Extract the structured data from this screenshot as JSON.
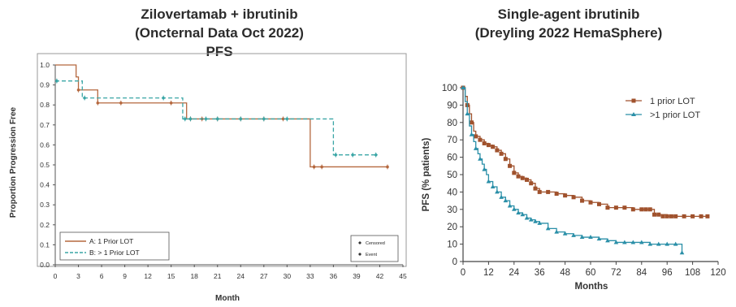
{
  "chart_data": [
    {
      "type": "line",
      "step": true,
      "title_lines": [
        "Zilovertamab + ibrutinib",
        "(Oncternal Data Oct 2022)",
        "PFS"
      ],
      "xlabel": "Month",
      "ylabel": "Proportion Progression Free",
      "xlim": [
        0,
        45
      ],
      "ylim": [
        0.0,
        1.0
      ],
      "xticks": [
        "0",
        "3",
        "6",
        "9",
        "12",
        "15",
        "18",
        "21",
        "24",
        "27",
        "30",
        "33",
        "36",
        "39",
        "42",
        "45"
      ],
      "yticks": [
        "0.0",
        "0.1",
        "0.2",
        "0.3",
        "0.4",
        "0.5",
        "0.6",
        "0.7",
        "0.8",
        "0.9",
        "1.0"
      ],
      "legend": {
        "position": "bottom-left",
        "entries": [
          "A: 1 Prior LOT",
          "B: > 1 Prior LOT"
        ]
      },
      "symbol_legend": {
        "position": "bottom-right",
        "entries": [
          "Censored",
          "Event"
        ]
      },
      "series": [
        {
          "name": "A: 1 Prior LOT",
          "color": "#b5683f",
          "dash": "solid",
          "steps": [
            [
              0,
              1.0
            ],
            [
              2.7,
              0.94
            ],
            [
              3,
              0.875
            ],
            [
              5.5,
              0.81
            ],
            [
              17,
              0.73
            ],
            [
              33,
              0.49
            ],
            [
              43,
              0.49
            ]
          ],
          "censored": [
            3,
            5.5,
            8.5,
            15,
            17.5,
            19,
            21,
            24,
            27,
            29.5,
            33.5,
            34.5,
            43
          ]
        },
        {
          "name": "B: > 1 Prior LOT",
          "color": "#3aa6a6",
          "dash": "dashed",
          "steps": [
            [
              0,
              0.92
            ],
            [
              3.5,
              0.835
            ],
            [
              16.5,
              0.73
            ],
            [
              36,
              0.55
            ],
            [
              41.5,
              0.55
            ]
          ],
          "censored": [
            0.2,
            3.8,
            14,
            16.8,
            17.5,
            19.5,
            21,
            24,
            27,
            30,
            36.3,
            38.5,
            41.5
          ]
        }
      ]
    },
    {
      "type": "line",
      "step": true,
      "title_lines": [
        "Single-agent ibrutinib",
        "(Dreyling 2022 HemaSphere)"
      ],
      "xlabel": "Months",
      "ylabel": "PFS (% patients)",
      "xlim": [
        0,
        120
      ],
      "ylim": [
        0,
        100
      ],
      "xticks": [
        "0",
        "12",
        "24",
        "36",
        "48",
        "60",
        "72",
        "84",
        "96",
        "108",
        "120"
      ],
      "yticks": [
        "0",
        "10",
        "20",
        "30",
        "40",
        "50",
        "60",
        "70",
        "80",
        "90",
        "100"
      ],
      "legend": {
        "position": "top-right",
        "entries": [
          "1 prior LOT",
          ">1 prior LOT"
        ]
      },
      "series": [
        {
          "name": "1 prior LOT",
          "color": "#a0522d",
          "marker": "square",
          "x": [
            0,
            1,
            2,
            3,
            4,
            5,
            6,
            8,
            10,
            12,
            14,
            16,
            18,
            20,
            22,
            24,
            26,
            28,
            30,
            32,
            34,
            36,
            40,
            44,
            48,
            52,
            56,
            60,
            64,
            68,
            72,
            76,
            80,
            84,
            88,
            90,
            96,
            100,
            104,
            108,
            112,
            115
          ],
          "y": [
            100,
            95,
            90,
            85,
            80,
            75,
            72,
            70,
            68,
            67,
            66,
            64,
            62,
            59,
            55,
            51,
            49,
            48,
            47,
            45,
            42,
            40,
            40,
            39,
            38,
            37,
            35,
            34,
            33,
            31,
            31,
            31,
            30,
            30,
            30,
            27,
            26,
            26,
            26,
            26,
            26,
            26
          ],
          "markers_x": [
            0,
            2,
            4,
            6,
            8,
            10,
            12,
            14,
            16,
            18,
            20,
            22,
            24,
            26,
            28,
            30,
            32,
            34,
            36,
            40,
            44,
            48,
            52,
            56,
            60,
            64,
            68,
            72,
            76,
            80,
            84,
            86,
            88,
            90,
            92,
            94,
            96,
            98,
            100,
            104,
            108,
            112,
            115
          ],
          "markers_y": [
            100,
            90,
            80,
            72,
            70,
            68,
            67,
            66,
            64,
            62,
            59,
            55,
            51,
            49,
            48,
            47,
            45,
            42,
            40,
            40,
            39,
            38,
            37,
            35,
            34,
            33,
            31,
            31,
            31,
            30,
            30,
            30,
            30,
            27,
            27,
            26,
            26,
            26,
            26,
            26,
            26,
            26,
            26
          ]
        },
        {
          "name": ">1 prior LOT",
          "color": "#2a8fa8",
          "marker": "triangle",
          "x": [
            0,
            1,
            2,
            3,
            4,
            5,
            6,
            7,
            8,
            9,
            10,
            11,
            12,
            14,
            16,
            18,
            20,
            22,
            24,
            26,
            28,
            30,
            32,
            34,
            36,
            40,
            44,
            48,
            52,
            56,
            60,
            64,
            68,
            72,
            76,
            80,
            84,
            88,
            92,
            96,
            100,
            103
          ],
          "y": [
            100,
            92,
            85,
            78,
            73,
            69,
            65,
            62,
            59,
            56,
            53,
            50,
            46,
            43,
            40,
            37,
            35,
            32,
            30,
            28,
            27,
            25,
            24,
            23,
            22,
            19,
            17,
            16,
            15,
            14,
            14,
            13,
            12,
            11,
            11,
            11,
            11,
            10,
            10,
            10,
            10,
            5
          ],
          "markers_x": [
            0,
            2,
            4,
            6,
            8,
            10,
            12,
            14,
            16,
            18,
            20,
            22,
            24,
            26,
            28,
            30,
            32,
            34,
            36,
            40,
            44,
            48,
            52,
            56,
            60,
            64,
            68,
            72,
            76,
            80,
            84,
            88,
            92,
            96,
            100,
            103
          ],
          "markers_y": [
            100,
            85,
            73,
            65,
            59,
            53,
            46,
            43,
            40,
            37,
            35,
            32,
            30,
            28,
            27,
            25,
            24,
            23,
            22,
            19,
            17,
            16,
            15,
            14,
            14,
            13,
            12,
            11,
            11,
            11,
            11,
            10,
            10,
            10,
            10,
            5
          ]
        }
      ]
    }
  ]
}
